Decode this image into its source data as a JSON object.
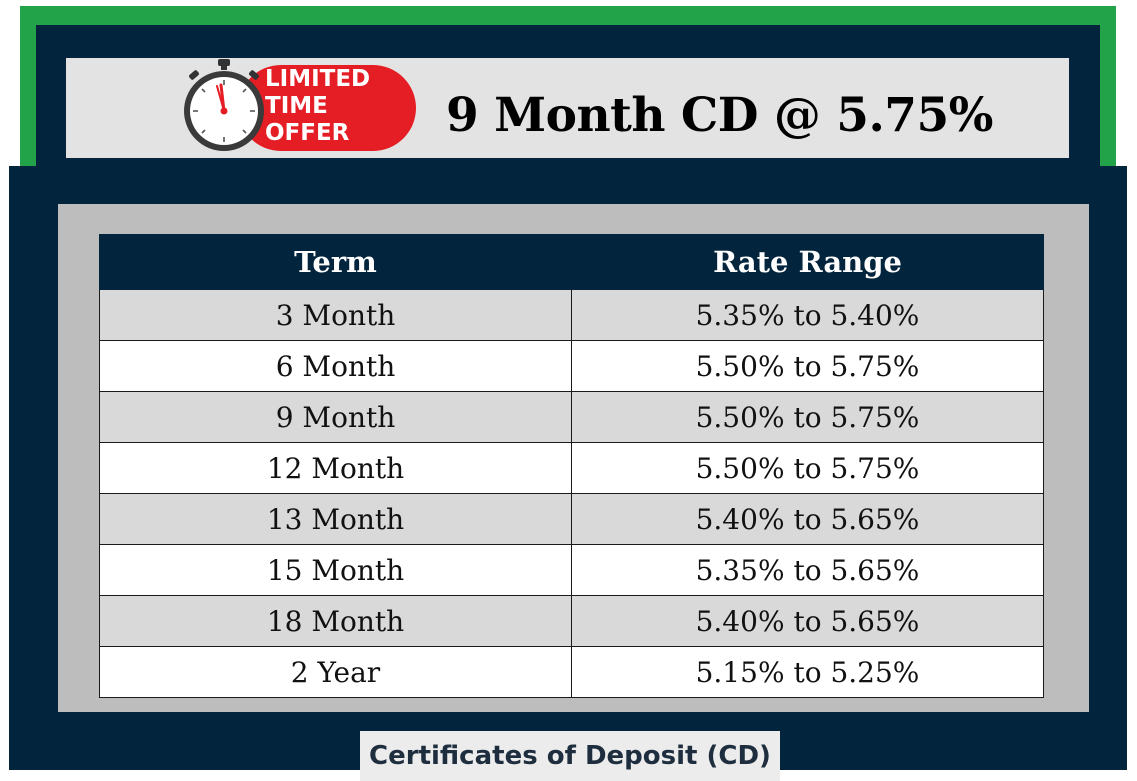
{
  "banner": {
    "badge_lines": [
      "LIMITED",
      "TIME",
      "OFFER"
    ],
    "badge_icon": "stopwatch-icon",
    "title": "9 Month CD @ 5.75%"
  },
  "table": {
    "headers": [
      "Term",
      "Rate Range"
    ],
    "rows": [
      {
        "term": "3 Month",
        "rate": "5.35% to 5.40%"
      },
      {
        "term": "6 Month",
        "rate": "5.50% to 5.75%"
      },
      {
        "term": "9 Month",
        "rate": "5.50% to 5.75%"
      },
      {
        "term": "12 Month",
        "rate": "5.50% to 5.75%"
      },
      {
        "term": "13 Month",
        "rate": "5.40% to 5.65%"
      },
      {
        "term": "15 Month",
        "rate": "5.35% to 5.65%"
      },
      {
        "term": "18 Month",
        "rate": "5.40% to 5.65%"
      },
      {
        "term": "2 Year",
        "rate": "5.15% to 5.25%"
      }
    ]
  },
  "footer": {
    "label": "Certificates of Deposit (CD)"
  },
  "colors": {
    "navy": "#02243d",
    "green": "#22a34a",
    "badge_red": "#e51d24",
    "row_gray": "#d9d9d9"
  }
}
